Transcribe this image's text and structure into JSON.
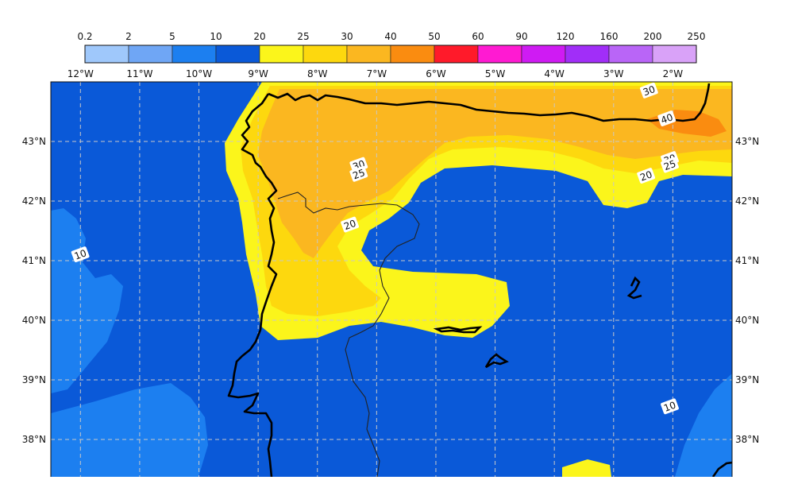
{
  "colorbar": {
    "labels": [
      "0.2",
      "2",
      "5",
      "10",
      "20",
      "25",
      "30",
      "40",
      "50",
      "60",
      "90",
      "120",
      "160",
      "200",
      "250"
    ],
    "colors": [
      "#9fc8fb",
      "#6fa6f5",
      "#1c7ff0",
      "#0a59d8",
      "#fbf51b",
      "#fdd80e",
      "#fbb720",
      "#fa8c10",
      "#ff1a2a",
      "#ff1ad2",
      "#cf1bf3",
      "#a12ef8",
      "#b965f7",
      "#d9a2f8"
    ]
  },
  "map": {
    "lon_labels": [
      "12°W",
      "11°W",
      "10°W",
      "9°W",
      "8°W",
      "7°W",
      "6°W",
      "5°W",
      "4°W",
      "3°W",
      "2°W"
    ],
    "lat_labels": [
      "43°N",
      "42°N",
      "41°N",
      "40°N",
      "39°N",
      "38°N"
    ],
    "lon_range": [
      -12.5,
      -1.0
    ],
    "lat_range": [
      37.3,
      44.0
    ],
    "gridlines": true,
    "colors": {
      "band_10_20": "#0a59d8",
      "band_5_10": "#1c7ff0",
      "band_20_25": "#fbf51b",
      "band_25_30": "#fdd80e",
      "band_30_40": "#fbb720",
      "band_40_50": "#fa8c10",
      "coastline": "#000000",
      "border": "#222222",
      "grid": "#c8c8c8"
    },
    "contour_labels": [
      {
        "text": "30",
        "lon": -2.4,
        "lat": 43.85
      },
      {
        "text": "40",
        "lon": -2.1,
        "lat": 43.38
      },
      {
        "text": "30",
        "lon": -7.3,
        "lat": 42.6
      },
      {
        "text": "25",
        "lon": -7.3,
        "lat": 42.45
      },
      {
        "text": "20",
        "lon": -7.45,
        "lat": 41.6
      },
      {
        "text": "30",
        "lon": -2.05,
        "lat": 42.7
      },
      {
        "text": "25",
        "lon": -2.05,
        "lat": 42.6
      },
      {
        "text": "20",
        "lon": -2.45,
        "lat": 42.42
      },
      {
        "text": "10",
        "lon": -12.0,
        "lat": 41.1
      },
      {
        "text": "10",
        "lon": -2.05,
        "lat": 38.55
      }
    ]
  }
}
